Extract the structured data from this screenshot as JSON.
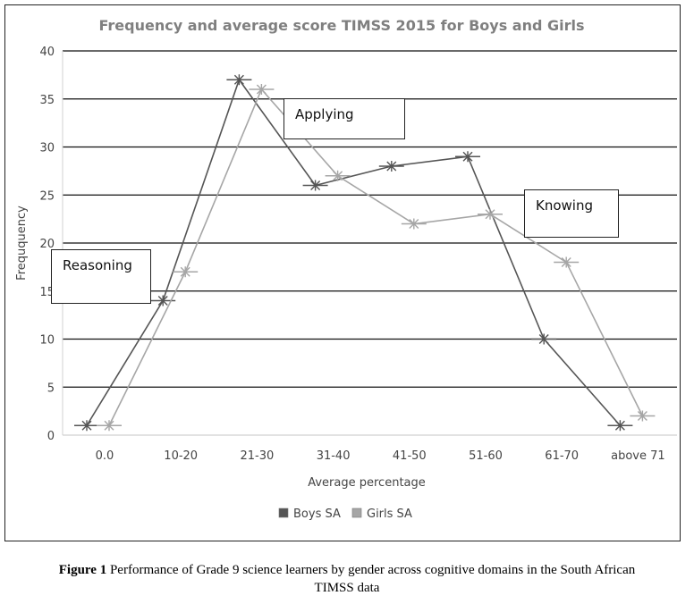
{
  "chart_data": {
    "type": "line",
    "title": "Frequency and average score TIMSS 2015  for Boys and Girls",
    "xlabel": "Average percentage",
    "ylabel": "Freququency",
    "categories": [
      "0.0",
      "10-20",
      "21-30",
      "31-40",
      "41-50",
      "51-60",
      "61-70",
      "above 71"
    ],
    "ylim": [
      0,
      40
    ],
    "yticks": [
      0,
      5,
      10,
      15,
      20,
      25,
      30,
      35,
      40
    ],
    "grid": true,
    "legend_placement": "bottom",
    "series": [
      {
        "name": "Boys SA",
        "color": "#555555",
        "values": [
          1,
          14,
          37,
          26,
          28,
          29,
          10,
          1
        ]
      },
      {
        "name": "Girls SA",
        "color": "#a6a6a6",
        "values": [
          1,
          17,
          36,
          27,
          22,
          23,
          18,
          2
        ]
      }
    ],
    "annotations": [
      "Reasoning",
      "Applying",
      "Knowing"
    ]
  },
  "caption": {
    "label": "Figure 1",
    "text": " Performance of Grade 9 science learners by gender across cognitive domains in the South African",
    "text2": "TIMSS data"
  }
}
